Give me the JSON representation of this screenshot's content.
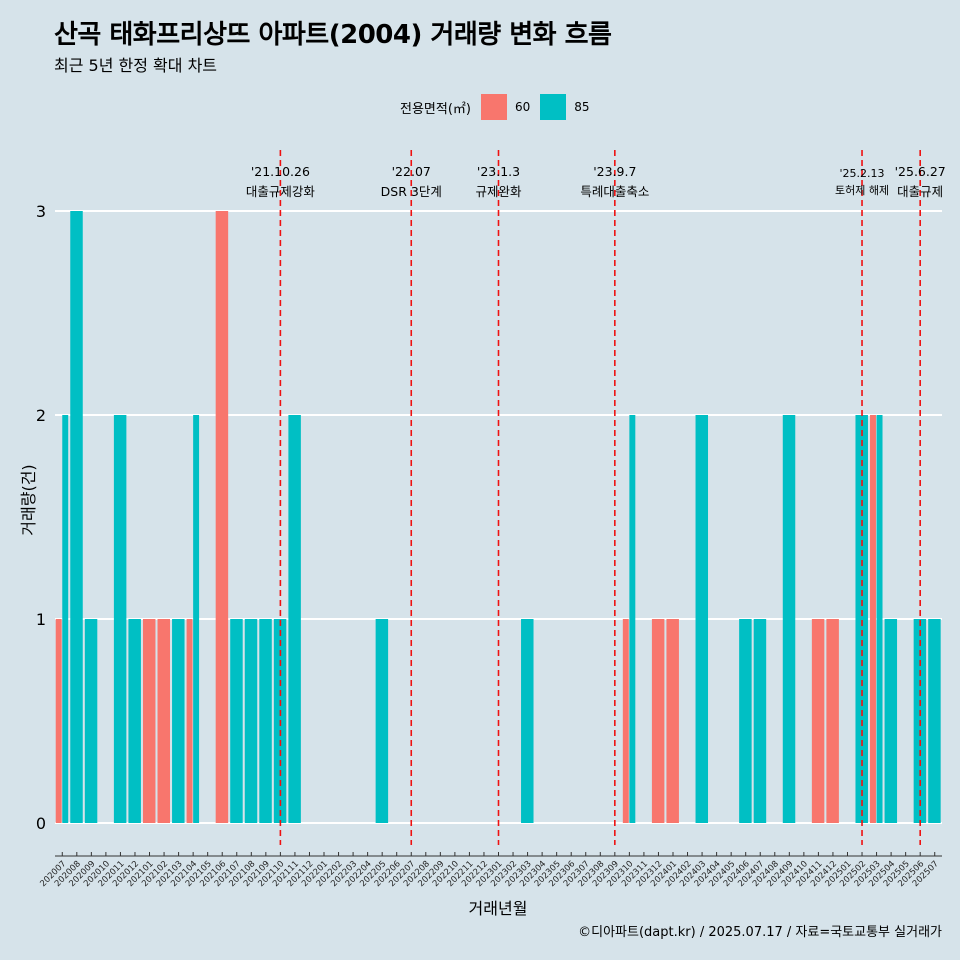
{
  "title": "산곡 태화프리상뜨 아파트(2004) 거래량 변화 흐름",
  "subtitle": "최근 5년 한정 확대 차트",
  "caption": "©디아파트(dapt.kr) / 2025.07.17 / 자료=국토교통부 실거래가",
  "legend": {
    "title": "전용면적(㎡)",
    "items": [
      {
        "label": "60",
        "color": "#f8766d"
      },
      {
        "label": "85",
        "color": "#00bfc4"
      }
    ]
  },
  "chart_data": {
    "type": "bar",
    "xlabel": "거래년월",
    "ylabel": "거래량(건)",
    "ylim": [
      0,
      3
    ],
    "yticks": [
      0,
      1,
      2,
      3
    ],
    "grid": true,
    "legend_position": "top",
    "categories": [
      "202007",
      "202008",
      "202009",
      "202010",
      "202011",
      "202012",
      "202101",
      "202102",
      "202103",
      "202104",
      "202105",
      "202106",
      "202107",
      "202108",
      "202109",
      "202110",
      "202111",
      "202112",
      "202201",
      "202202",
      "202203",
      "202204",
      "202205",
      "202206",
      "202207",
      "202208",
      "202209",
      "202210",
      "202211",
      "202212",
      "202301",
      "202302",
      "202303",
      "202304",
      "202305",
      "202306",
      "202307",
      "202308",
      "202309",
      "202310",
      "202311",
      "202312",
      "202401",
      "202402",
      "202403",
      "202404",
      "202405",
      "202406",
      "202407",
      "202408",
      "202409",
      "202410",
      "202411",
      "202412",
      "202501",
      "202502",
      "202503",
      "202504",
      "202505",
      "202506",
      "202507"
    ],
    "series": [
      {
        "name": "60",
        "color": "#f8766d",
        "values": [
          1,
          0,
          0,
          0,
          0,
          0,
          1,
          1,
          0,
          1,
          0,
          3,
          0,
          0,
          0,
          0,
          0,
          0,
          0,
          0,
          0,
          0,
          0,
          0,
          0,
          0,
          0,
          0,
          0,
          0,
          0,
          0,
          0,
          0,
          0,
          0,
          0,
          0,
          0,
          1,
          0,
          1,
          1,
          0,
          0,
          0,
          0,
          0,
          0,
          0,
          0,
          0,
          1,
          1,
          0,
          0,
          2,
          0,
          0,
          0,
          0
        ]
      },
      {
        "name": "85",
        "color": "#00bfc4",
        "values": [
          2,
          3,
          1,
          0,
          2,
          1,
          0,
          0,
          1,
          2,
          0,
          0,
          1,
          1,
          1,
          1,
          2,
          0,
          0,
          0,
          0,
          0,
          1,
          0,
          0,
          0,
          0,
          0,
          0,
          0,
          0,
          0,
          1,
          0,
          0,
          0,
          0,
          0,
          0,
          2,
          0,
          0,
          0,
          0,
          2,
          0,
          0,
          1,
          1,
          0,
          2,
          0,
          0,
          0,
          0,
          2,
          2,
          1,
          0,
          1,
          1
        ]
      }
    ],
    "events": [
      {
        "date": "'21.10.26",
        "label": "대출규제강화",
        "category": "202110"
      },
      {
        "date": "'22.07",
        "label": "DSR 3단계",
        "category": "202207"
      },
      {
        "date": "'23.1.3",
        "label": "규제완화",
        "category": "202301"
      },
      {
        "date": "'23.9.7",
        "label": "특례대출축소",
        "category": "202309"
      },
      {
        "date": "'25.2.13",
        "label": "토허제 해제",
        "category": "202502"
      },
      {
        "date": "'25.6.27",
        "label": "대출규제",
        "category": "202506"
      }
    ]
  }
}
